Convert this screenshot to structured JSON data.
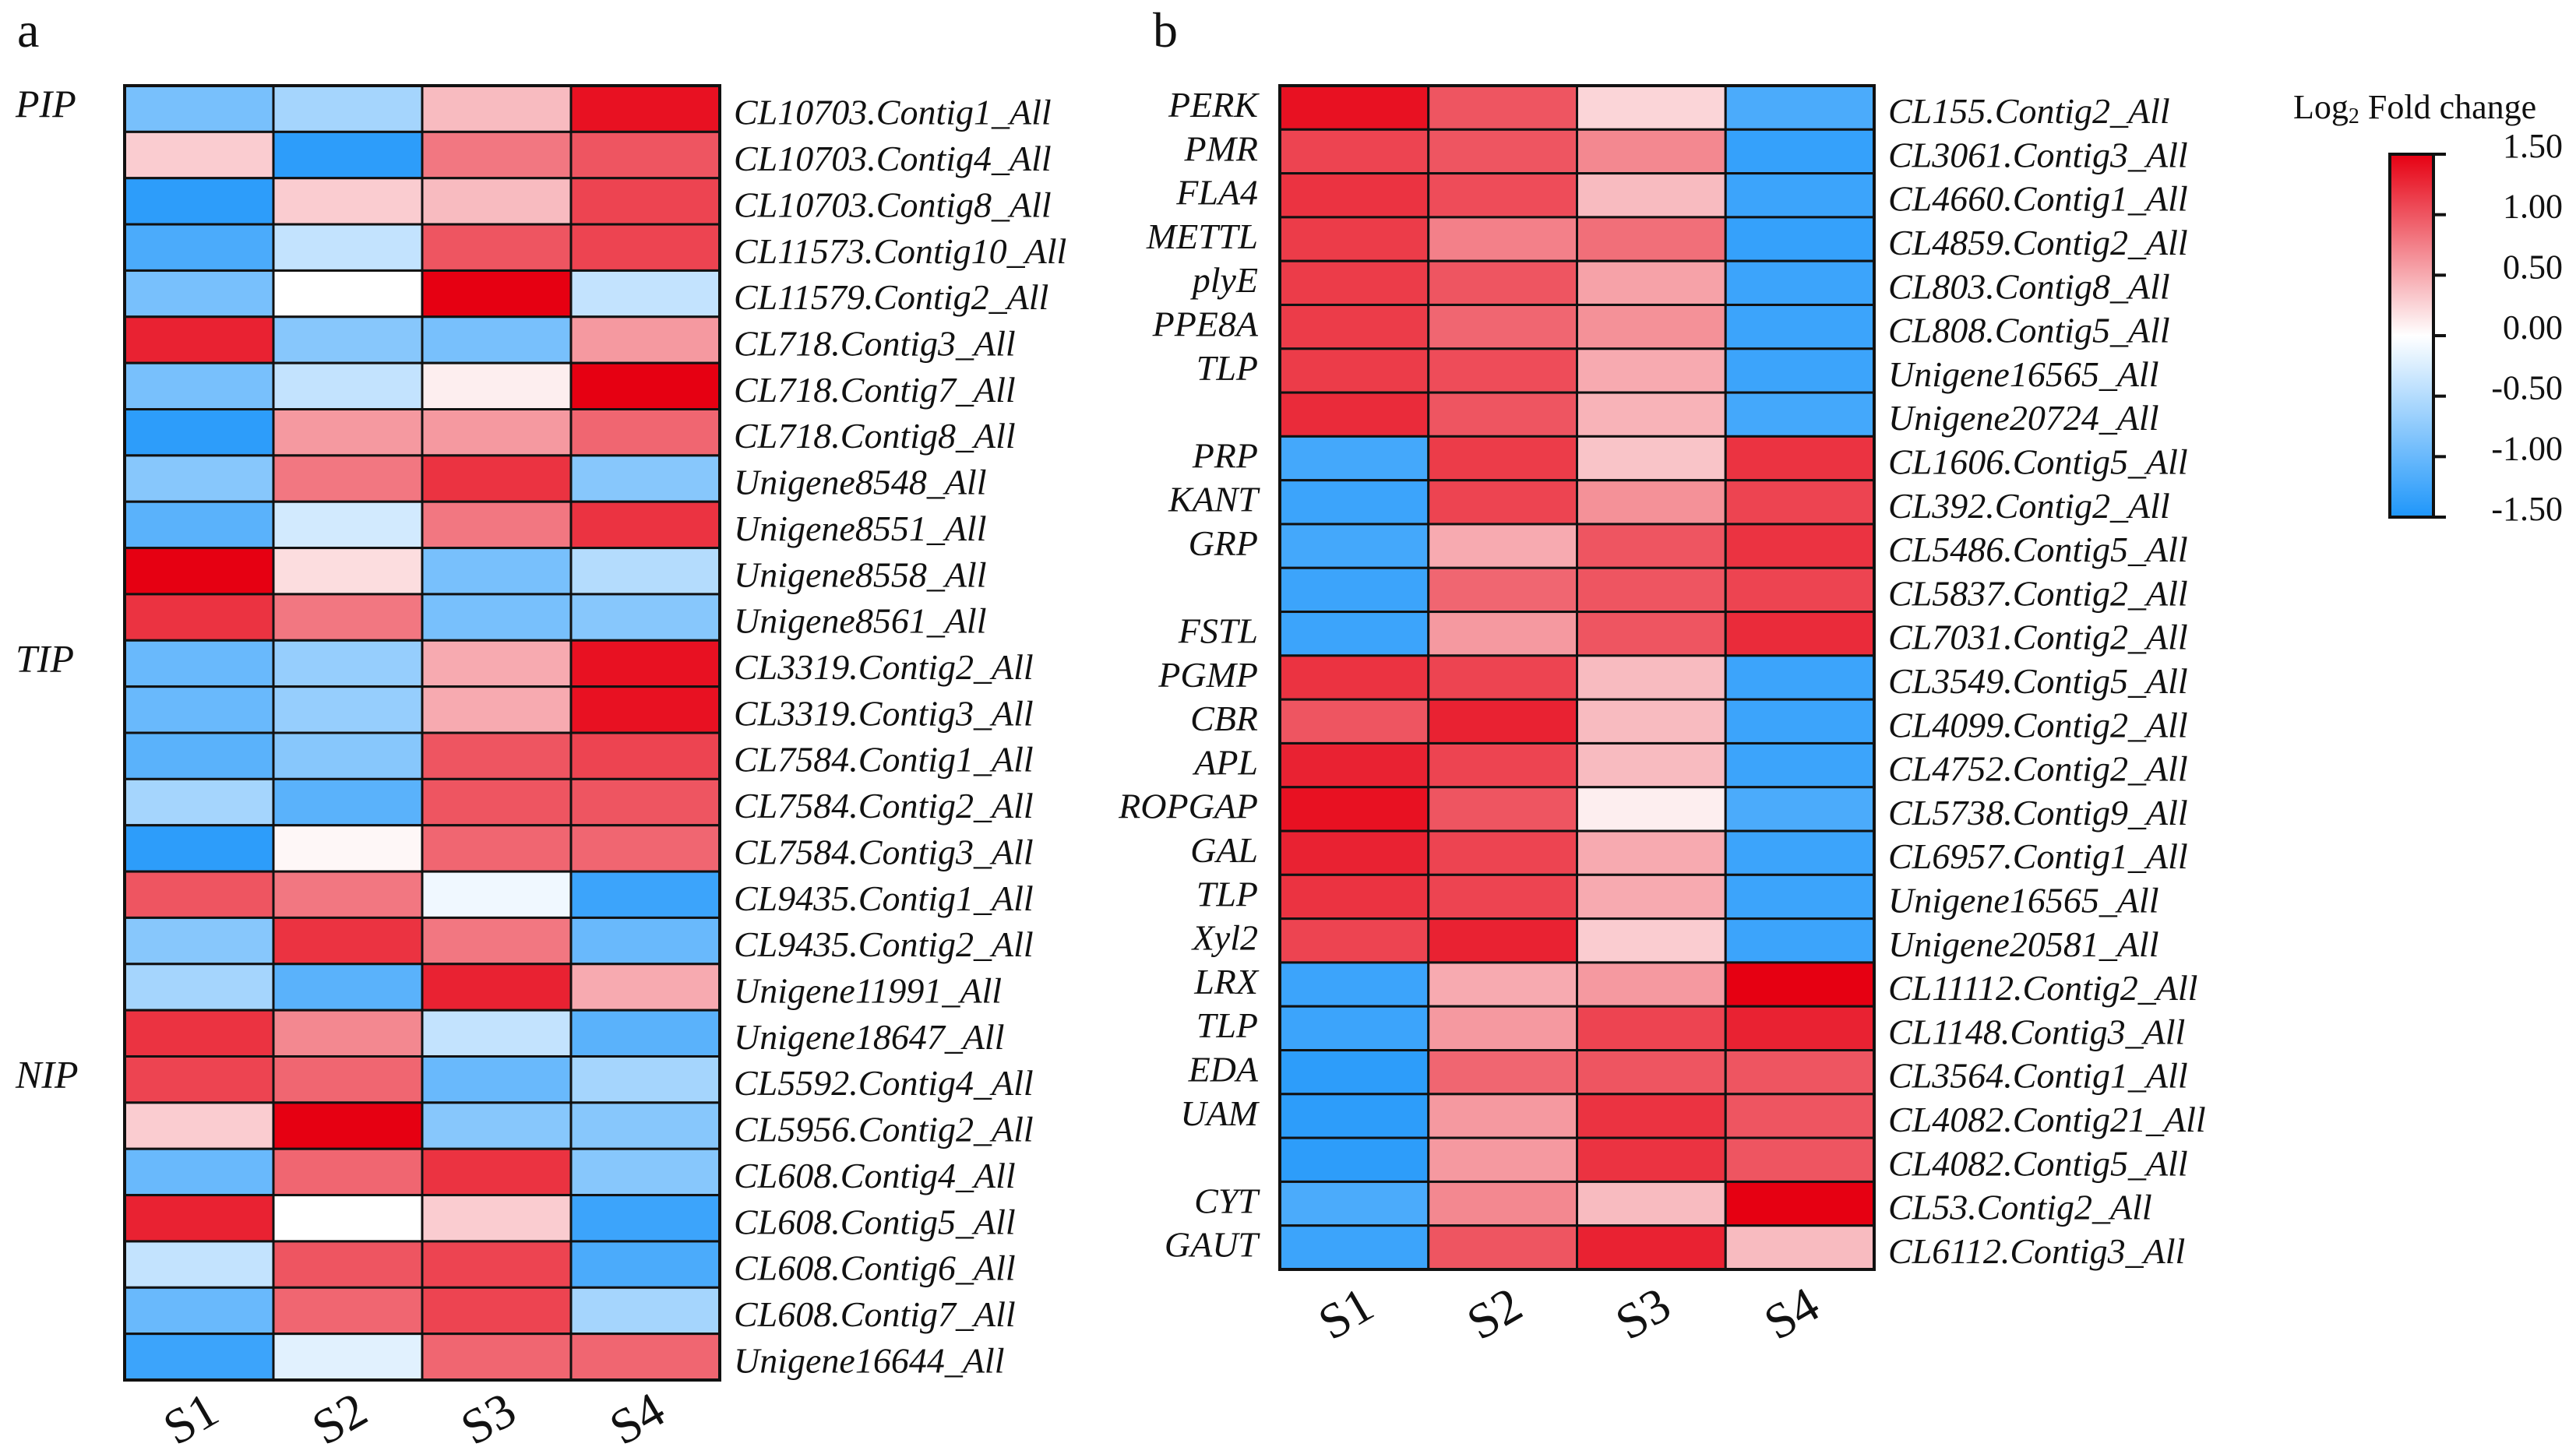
{
  "color_scale": {
    "title": "Log2 Fold change",
    "title_main": "Log",
    "title_sub": "2",
    "title_rest": " Fold change",
    "min": -1.5,
    "max": 1.5,
    "ticks": [
      "1.50",
      "1.00",
      "0.50",
      "0.00",
      "-0.50",
      "-1.00",
      "-1.50"
    ],
    "tick_values": [
      1.5,
      1.0,
      0.5,
      0.0,
      -0.5,
      -1.0,
      -1.5
    ],
    "low_color": "#1E96FA",
    "mid_color": "#FFFFFF",
    "high_color": "#E60012"
  },
  "chart_data": [
    {
      "type": "heatmap",
      "panel": "a",
      "columns": [
        "S1",
        "S2",
        "S3",
        "S4"
      ],
      "groups": [
        {
          "label": "PIP",
          "row": 0
        },
        {
          "label": "TIP",
          "row": 12
        },
        {
          "label": "NIP",
          "row": 21
        }
      ],
      "rows": [
        "CL10703.Contig1_All",
        "CL10703.Contig4_All",
        "CL10703.Contig8_All",
        "CL11573.Contig10_All",
        "CL11579.Contig2_All",
        "CL718.Contig3_All",
        "CL718.Contig7_All",
        "CL718.Contig8_All",
        "Unigene8548_All",
        "Unigene8551_All",
        "Unigene8558_All",
        "Unigene8561_All",
        "CL3319.Contig2_All",
        "CL3319.Contig3_All",
        "CL7584.Contig1_All",
        "CL7584.Contig2_All",
        "CL7584.Contig3_All",
        "CL9435.Contig1_All",
        "CL9435.Contig2_All",
        "Unigene11991_All",
        "Unigene18647_All",
        "CL5592.Contig4_All",
        "CL5956.Contig2_All",
        "CL608.Contig4_All",
        "CL608.Contig5_All",
        "CL608.Contig6_All",
        "CL608.Contig7_All",
        "Unigene16644_All"
      ],
      "values": [
        [
          -0.9,
          -0.6,
          0.4,
          1.4
        ],
        [
          0.3,
          -1.4,
          0.8,
          1.0
        ],
        [
          -1.4,
          0.3,
          0.4,
          1.1
        ],
        [
          -1.2,
          -0.4,
          1.0,
          1.1
        ],
        [
          -0.9,
          0.0,
          1.5,
          -0.4
        ],
        [
          1.3,
          -0.8,
          -0.9,
          0.6
        ],
        [
          -0.9,
          -0.4,
          0.1,
          1.5
        ],
        [
          -1.4,
          0.6,
          0.6,
          0.9
        ],
        [
          -0.8,
          0.8,
          1.2,
          -0.8
        ],
        [
          -1.1,
          -0.3,
          0.8,
          1.2
        ],
        [
          1.5,
          0.2,
          -0.9,
          -0.5
        ],
        [
          1.2,
          0.8,
          -0.9,
          -0.8
        ],
        [
          -1.0,
          -0.7,
          0.5,
          1.4
        ],
        [
          -1.0,
          -0.7,
          0.5,
          1.4
        ],
        [
          -1.1,
          -0.8,
          1.0,
          1.1
        ],
        [
          -0.6,
          -1.1,
          1.0,
          1.0
        ],
        [
          -1.4,
          0.05,
          0.9,
          0.9
        ],
        [
          1.0,
          0.8,
          -0.1,
          -1.3
        ],
        [
          -0.8,
          1.2,
          0.8,
          -1.0
        ],
        [
          -0.6,
          -1.1,
          1.3,
          0.5
        ],
        [
          1.2,
          0.7,
          -0.4,
          -1.1
        ],
        [
          1.1,
          0.9,
          -1.0,
          -0.6
        ],
        [
          0.3,
          1.5,
          -0.8,
          -0.8
        ],
        [
          -1.0,
          0.9,
          1.2,
          -0.8
        ],
        [
          1.3,
          0.0,
          0.3,
          -1.3
        ],
        [
          -0.4,
          1.0,
          1.1,
          -1.2
        ],
        [
          -1.0,
          0.9,
          1.1,
          -0.6
        ],
        [
          -1.3,
          -0.2,
          0.9,
          0.9
        ]
      ]
    },
    {
      "type": "heatmap",
      "panel": "b",
      "columns": [
        "S1",
        "S2",
        "S3",
        "S4"
      ],
      "gene_labels": [
        "PERK",
        "PMR",
        "FLA4",
        "METTL",
        "plyE",
        "PPE8A",
        "TLP",
        "",
        "PRP",
        "KANT",
        "GRP",
        "",
        "FSTL",
        "PGMP",
        "CBR",
        "APL",
        "ROPGAP",
        "GAL",
        "TLP",
        "Xyl2",
        "LRX",
        "TLP",
        "EDA",
        "UAM",
        "",
        "CYT",
        "GAUT"
      ],
      "rows": [
        "CL155.Contig2_All",
        "CL3061.Contig3_All",
        "CL4660.Contig1_All",
        "CL4859.Contig2_All",
        "CL803.Contig8_All",
        "CL808.Contig5_All",
        "Unigene16565_All",
        "Unigene20724_All",
        "CL1606.Contig5_All",
        "CL392.Contig2_All",
        "CL5486.Contig5_All",
        "CL5837.Contig2_All",
        "CL7031.Contig2_All",
        "CL3549.Contig5_All",
        "CL4099.Contig2_All",
        "CL4752.Contig2_All",
        "CL5738.Contig9_All",
        "CL6957.Contig1_All",
        "Unigene16565_All",
        "Unigene20581_All",
        "CL11112.Contig2_All",
        "CL1148.Contig3_All",
        "CL3564.Contig1_All",
        "CL4082.Contig21_All",
        "CL4082.Contig5_All",
        "CL53.Contig2_All",
        "CL6112.Contig3_All"
      ],
      "values": [
        [
          1.4,
          1.0,
          0.25,
          -1.2
        ],
        [
          1.1,
          1.0,
          0.7,
          -1.35
        ],
        [
          1.2,
          1.05,
          0.4,
          -1.3
        ],
        [
          1.15,
          0.75,
          0.85,
          -1.35
        ],
        [
          1.15,
          1.0,
          0.55,
          -1.3
        ],
        [
          1.15,
          0.9,
          0.65,
          -1.3
        ],
        [
          1.15,
          1.05,
          0.5,
          -1.3
        ],
        [
          1.25,
          1.0,
          0.45,
          -1.25
        ],
        [
          -1.25,
          1.15,
          0.35,
          1.2
        ],
        [
          -1.3,
          1.1,
          0.65,
          1.1
        ],
        [
          -1.25,
          0.5,
          1.0,
          1.2
        ],
        [
          -1.3,
          0.9,
          1.0,
          1.1
        ],
        [
          -1.3,
          0.6,
          1.0,
          1.25
        ],
        [
          1.2,
          1.1,
          0.4,
          -1.3
        ],
        [
          1.0,
          1.3,
          0.4,
          -1.3
        ],
        [
          1.3,
          1.1,
          0.4,
          -1.3
        ],
        [
          1.4,
          1.0,
          0.1,
          -1.2
        ],
        [
          1.3,
          1.1,
          0.5,
          -1.3
        ],
        [
          1.2,
          1.1,
          0.5,
          -1.3
        ],
        [
          1.1,
          1.3,
          0.3,
          -1.3
        ],
        [
          -1.3,
          0.5,
          0.6,
          1.5
        ],
        [
          -1.3,
          0.6,
          1.1,
          1.3
        ],
        [
          -1.4,
          0.9,
          1.0,
          1.0
        ],
        [
          -1.4,
          0.6,
          1.2,
          1.0
        ],
        [
          -1.4,
          0.6,
          1.2,
          1.0
        ],
        [
          -1.2,
          0.7,
          0.4,
          1.5
        ],
        [
          -1.3,
          1.0,
          1.3,
          0.4
        ]
      ]
    }
  ]
}
